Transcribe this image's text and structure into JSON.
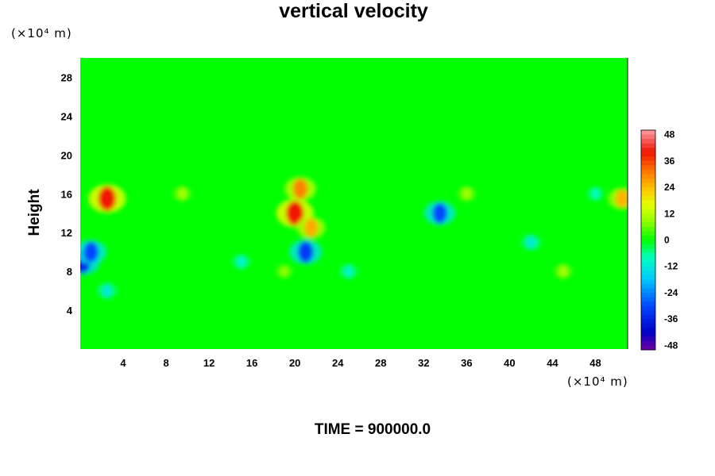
{
  "chart_data": {
    "type": "heatmap",
    "title": "vertical velocity",
    "ylabel": "Height",
    "xlabel": "",
    "x_unit": "(×10⁴ m)",
    "y_unit": "(×10⁴ m)",
    "xlim": [
      0,
      51
    ],
    "ylim": [
      0,
      30
    ],
    "x_ticks": [
      "4",
      "8",
      "12",
      "16",
      "20",
      "24",
      "28",
      "32",
      "36",
      "40",
      "44",
      "48"
    ],
    "y_ticks": [
      "4",
      "8",
      "12",
      "16",
      "20",
      "24",
      "28"
    ],
    "colorbar": {
      "range": [
        -50,
        50
      ],
      "ticks": [
        "48",
        "36",
        "24",
        "12",
        "0",
        "-12",
        "-24",
        "-36",
        "-48"
      ]
    },
    "features": [
      {
        "x": 2.5,
        "y": 15.5,
        "value": 40
      },
      {
        "x": 20.0,
        "y": 14.0,
        "value": 40
      },
      {
        "x": 20.5,
        "y": 16.5,
        "value": 30
      },
      {
        "x": 21.5,
        "y": 12.5,
        "value": 26
      },
      {
        "x": 0.2,
        "y": 9.0,
        "value": -36
      },
      {
        "x": 1.0,
        "y": 10.0,
        "value": -30
      },
      {
        "x": 21.0,
        "y": 10.0,
        "value": -32
      },
      {
        "x": 33.5,
        "y": 14.0,
        "value": -30
      },
      {
        "x": 50.5,
        "y": 15.5,
        "value": 25
      },
      {
        "x": 9.5,
        "y": 16.0,
        "value": 10
      },
      {
        "x": 36.0,
        "y": 16.0,
        "value": 10
      },
      {
        "x": 45.0,
        "y": 8.0,
        "value": 10
      },
      {
        "x": 19.0,
        "y": 8.0,
        "value": 8
      },
      {
        "x": 2.5,
        "y": 6.0,
        "value": -12
      },
      {
        "x": 15.0,
        "y": 9.0,
        "value": -10
      },
      {
        "x": 25.0,
        "y": 8.0,
        "value": -10
      },
      {
        "x": 42.0,
        "y": 11.0,
        "value": -12
      },
      {
        "x": 48.0,
        "y": 16.0,
        "value": -8
      }
    ]
  },
  "footer": {
    "time_label": "TIME = 900000.0"
  },
  "colors": {
    "background": "#ffffff",
    "zero_color": "#00ff00"
  }
}
